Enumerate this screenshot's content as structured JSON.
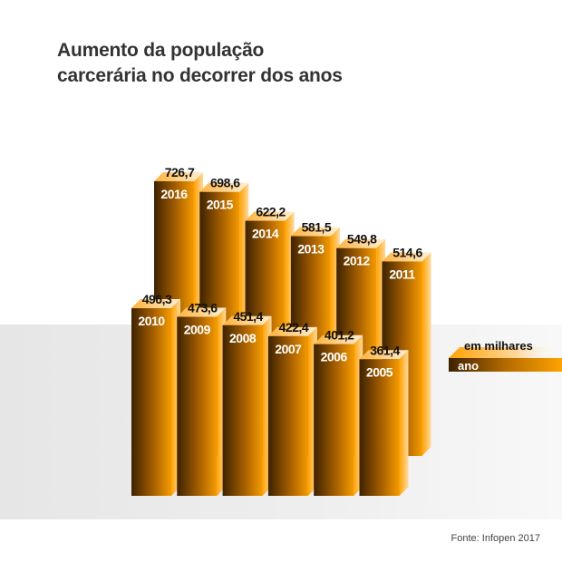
{
  "title_line1": "Aumento da população",
  "title_line2": "carcerária no decorrer dos anos",
  "source": "Fonte: Infopen 2017",
  "colors": {
    "bar_dark": "#3d2200",
    "bar_orange": "#f59b00",
    "top_light": "#ffc870"
  },
  "chart_data": {
    "type": "bar",
    "title": "Aumento da população carcerária no decorrer dos anos",
    "unit_label": "em milhares",
    "category_label": "ano",
    "categories": [
      "2005",
      "2006",
      "2007",
      "2008",
      "2009",
      "2010",
      "2011",
      "2012",
      "2013",
      "2014",
      "2015",
      "2016"
    ],
    "values": [
      361.4,
      401.2,
      422.4,
      451.4,
      473.6,
      496.3,
      514.6,
      549.8,
      581.5,
      622.2,
      698.6,
      726.7
    ],
    "value_labels": [
      "361,4",
      "401,2",
      "422,4",
      "451,4",
      "473,6",
      "496,3",
      "514,6",
      "549,8",
      "581,5",
      "622,2",
      "698,6",
      "726,7"
    ],
    "style": "3d-columns",
    "grid": false,
    "legend_position": "right"
  }
}
